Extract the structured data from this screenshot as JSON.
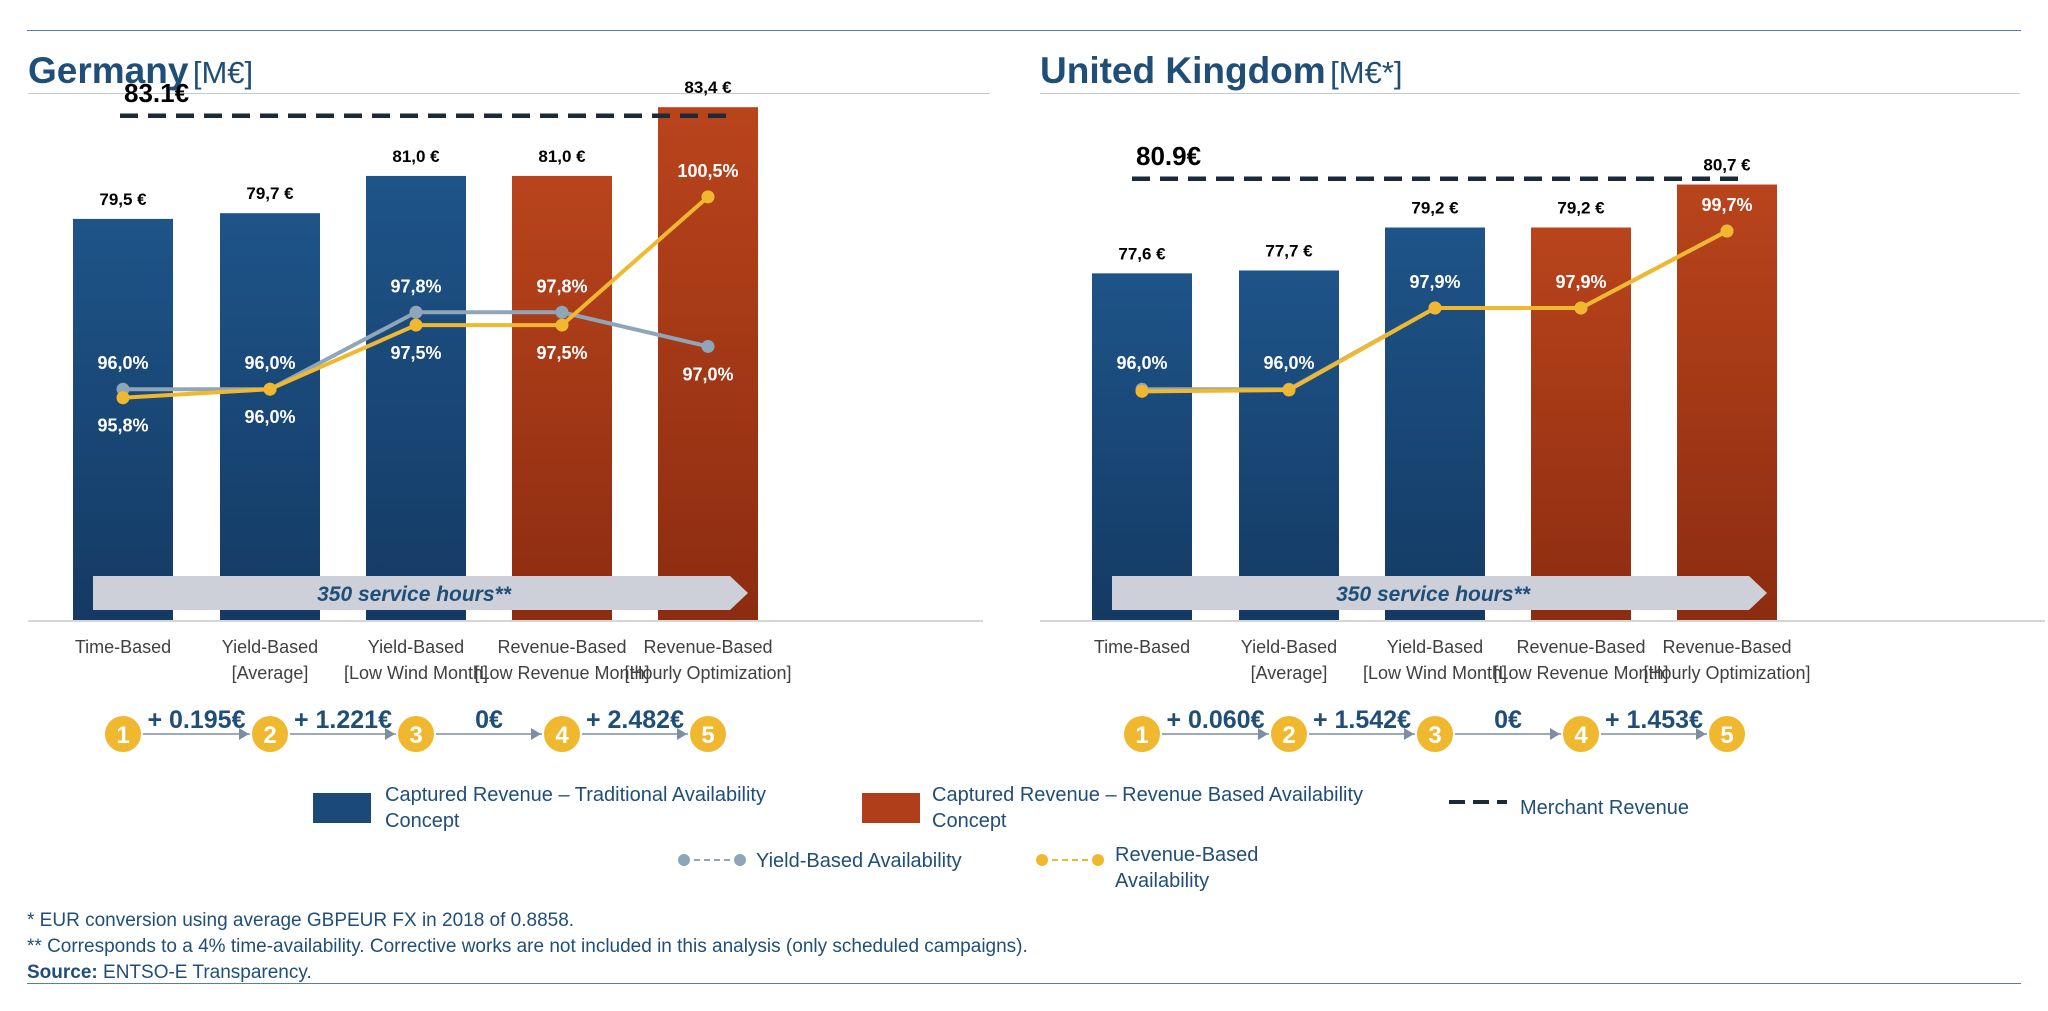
{
  "colors": {
    "navy": "#1c4a78",
    "rust": "#b13e1a",
    "grey_line": "#8fa5b8",
    "yellow_line": "#f0b82f",
    "merchant": "#1a2a3a",
    "arrow_band": "#cdd0d9",
    "title": "#1f4e79"
  },
  "panels": [
    {
      "title": "Germany",
      "unit": "[M€]",
      "chart_data": {
        "type": "bar",
        "categories": [
          [
            "Time-Based"
          ],
          [
            "Yield-Based",
            "[Average]"
          ],
          [
            "Yield-Based",
            "[Low Wind Month]"
          ],
          [
            "Revenue-Based",
            "[Low Revenue Month]"
          ],
          [
            "Revenue-Based",
            "[Hourly Optimization]"
          ]
        ],
        "series": [
          {
            "name": "Captured Revenue – Traditional Availability Concept",
            "values": [
              79.5,
              79.7,
              81.0,
              null,
              null
            ]
          },
          {
            "name": "Captured Revenue – Revenue Based Availability Concept",
            "values": [
              null,
              null,
              null,
              81.0,
              83.4
            ]
          }
        ],
        "bar_labels": [
          "79,5 €",
          "79,7 €",
          "81,0 €",
          "81,0 €",
          "83,4 €"
        ],
        "bar_kind": [
          "navy",
          "navy",
          "navy",
          "rust",
          "rust"
        ],
        "merchant_revenue": {
          "value": 83.1,
          "label": "83.1€"
        },
        "ylim": [
          65.5,
          84.0
        ],
        "lines": [
          {
            "name": "Yield-Based Availability",
            "kind": "grey",
            "values": [
              96.0,
              96.0,
              97.8,
              97.8,
              97.0
            ],
            "labels": [
              "96,0%",
              "96,0%",
              "97,8%",
              "97,8%",
              "97,0%"
            ],
            "label_pos": [
              "above",
              "above",
              "above",
              "above",
              "below"
            ]
          },
          {
            "name": "Revenue-Based Availability",
            "kind": "yellow",
            "values": [
              95.8,
              96.0,
              97.5,
              97.5,
              100.5
            ],
            "labels": [
              "95,8%",
              "96,0%",
              "97,5%",
              "97,5%",
              "100,5%"
            ],
            "label_pos": [
              "below",
              "below",
              "below",
              "below",
              "above"
            ]
          }
        ],
        "line_ylim": [
          90.6,
          103.0
        ],
        "band_label": "350 service hours**",
        "steps": [
          "+ 0.195€",
          "+ 1.221€",
          "0€",
          "+ 2.482€"
        ],
        "step_numbers": [
          "1",
          "2",
          "3",
          "4",
          "5"
        ]
      }
    },
    {
      "title": "United Kingdom",
      "unit": "[M€*]",
      "chart_data": {
        "type": "bar",
        "categories": [
          [
            "Time-Based"
          ],
          [
            "Yield-Based",
            "[Average]"
          ],
          [
            "Yield-Based",
            "[Low Wind Month]"
          ],
          [
            "Revenue-Based",
            "[Low Revenue Month]"
          ],
          [
            "Revenue-Based",
            "[Hourly Optimization]"
          ]
        ],
        "series": [
          {
            "name": "Captured Revenue – Traditional Availability Concept",
            "values": [
              77.6,
              77.7,
              79.2,
              null,
              null
            ]
          },
          {
            "name": "Captured Revenue – Revenue Based Availability Concept",
            "values": [
              null,
              null,
              null,
              79.2,
              80.7
            ]
          }
        ],
        "bar_labels": [
          "77,6 €",
          "77,7 €",
          "79,2 €",
          "79,2 €",
          "80,7 €"
        ],
        "bar_kind": [
          "navy",
          "navy",
          "navy",
          "rust",
          "rust"
        ],
        "merchant_revenue": {
          "value": 80.9,
          "label": "80.9€"
        },
        "ylim": [
          65.5,
          84.0
        ],
        "lines": [
          {
            "name": "Yield-Based Availability",
            "kind": "grey",
            "values": [
              96.0,
              96.0,
              97.9,
              97.9,
              99.7
            ],
            "labels": [
              "96,0%",
              "96,0%",
              "97,9%",
              "97,9%",
              "99,7%"
            ],
            "label_pos": [
              "above",
              "above",
              "above",
              "above",
              "above"
            ]
          },
          {
            "name": "Revenue-Based Availability",
            "kind": "yellow",
            "values": [
              95.95,
              95.98,
              97.9,
              97.9,
              99.7
            ],
            "labels": [],
            "label_pos": []
          }
        ],
        "line_ylim": [
          90.6,
          103.0
        ],
        "band_label": "350 service hours**",
        "steps": [
          "+ 0.060€",
          "+ 1.542€",
          "0€",
          "+ 1.453€"
        ],
        "step_numbers": [
          "1",
          "2",
          "3",
          "4",
          "5"
        ]
      }
    }
  ],
  "legend": {
    "traditional": "Captured Revenue – Traditional Availability Concept",
    "revenue_based": "Captured Revenue – Revenue Based Availability Concept",
    "merchant": "Merchant Revenue",
    "yield_line": "Yield-Based Availability",
    "revenue_line": "Revenue-Based Availability"
  },
  "footnotes": {
    "fx": "* EUR conversion using average GBPEUR FX in 2018 of 0.8858.",
    "hours": "** Corresponds to a 4% time-availability. Corrective works are not included in this analysis (only scheduled campaigns).",
    "source_label": "Source:",
    "source_value": " ENTSO-E Transparency."
  }
}
